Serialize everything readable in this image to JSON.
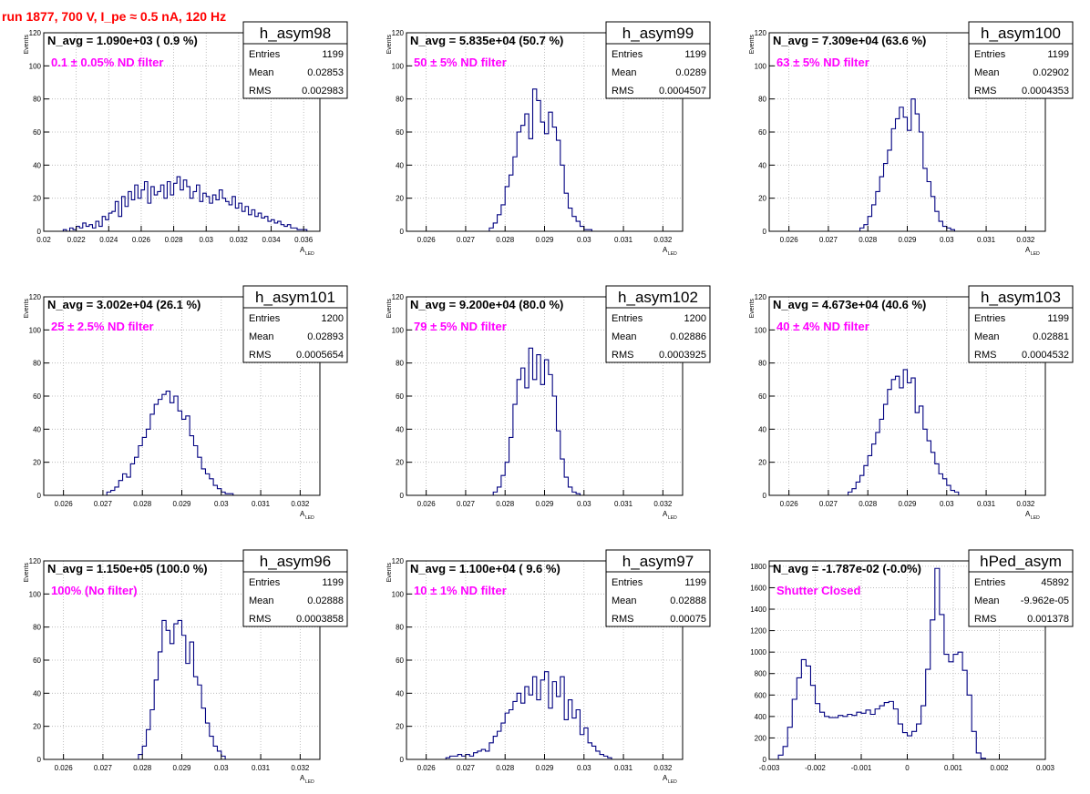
{
  "run_title": "run 1877,   700 V, I_pe ≈ 0.5 nA, 120 Hz",
  "colors": {
    "histogram": "#000080",
    "annotation": "#ff00ff",
    "run_title": "#ff0000",
    "frame": "#000000",
    "grid": "#b0b0b0"
  },
  "stats_labels": {
    "entries": "Entries",
    "mean": "Mean",
    "rms": "RMS"
  },
  "chart_data": [
    {
      "type": "bar",
      "title": "h_asym98",
      "ylabel": "Events",
      "xlabel": "A",
      "xlabel_sub": "LED",
      "navg": "N_avg = 1.090e+03 ( 0.9 %)",
      "filter": "0.1 ± 0.05% ND filter",
      "stats": {
        "entries": "1199",
        "mean": "0.02853",
        "rms": "0.002983"
      },
      "xlim": [
        0.02,
        0.037
      ],
      "ylim": [
        0,
        120
      ],
      "xticks": [
        0.02,
        0.022,
        0.024,
        0.026,
        0.028,
        0.03,
        0.032,
        0.034,
        0.036
      ],
      "xtick_labels": [
        "0.02",
        "0.022",
        "0.024",
        "0.026",
        "0.028",
        "0.03",
        "0.032",
        "0.034",
        "0.036"
      ],
      "yticks": [
        0,
        20,
        40,
        60,
        80,
        100,
        120
      ],
      "ytick_labels": [
        "0",
        "20",
        "40",
        "60",
        "80",
        "100",
        "120"
      ],
      "bin_start": 0.02,
      "bin_width": 0.0002,
      "values": [
        0,
        0,
        0,
        0,
        0,
        0,
        1,
        0,
        2,
        1,
        3,
        2,
        5,
        3,
        4,
        2,
        6,
        3,
        9,
        7,
        11,
        12,
        18,
        9,
        21,
        15,
        24,
        19,
        28,
        20,
        25,
        30,
        17,
        27,
        22,
        24,
        28,
        20,
        30,
        22,
        29,
        33,
        25,
        31,
        27,
        20,
        24,
        28,
        18,
        23,
        21,
        17,
        22,
        19,
        25,
        20,
        18,
        16,
        21,
        14,
        17,
        12,
        15,
        10,
        13,
        9,
        11,
        8,
        9,
        6,
        7,
        5,
        6,
        4,
        3,
        4,
        2,
        2,
        1,
        1,
        1,
        0,
        0,
        0,
        0
      ]
    },
    {
      "type": "bar",
      "title": "h_asym99",
      "ylabel": "Events",
      "xlabel": "A",
      "xlabel_sub": "LED",
      "navg": "N_avg = 5.835e+04 (50.7 %)",
      "filter": "50 ± 5% ND filter",
      "stats": {
        "entries": "1199",
        "mean": "0.0289",
        "rms": "0.0004507"
      },
      "xlim": [
        0.0255,
        0.0325
      ],
      "ylim": [
        0,
        120
      ],
      "xticks": [
        0.026,
        0.027,
        0.028,
        0.029,
        0.03,
        0.031,
        0.032
      ],
      "xtick_labels": [
        "0.026",
        "0.027",
        "0.028",
        "0.029",
        "0.03",
        "0.031",
        "0.032"
      ],
      "yticks": [
        0,
        20,
        40,
        60,
        80,
        100,
        120
      ],
      "ytick_labels": [
        "0",
        "20",
        "40",
        "60",
        "80",
        "100",
        "120"
      ],
      "bin_start": 0.0276,
      "bin_width": 0.0001,
      "values": [
        2,
        5,
        10,
        16,
        27,
        34,
        45,
        60,
        64,
        71,
        56,
        86,
        79,
        66,
        59,
        72,
        63,
        55,
        40,
        23,
        14,
        9,
        6,
        3,
        1,
        1
      ]
    },
    {
      "type": "bar",
      "title": "h_asym100",
      "ylabel": "Events",
      "xlabel": "A",
      "xlabel_sub": "LED",
      "navg": "N_avg = 7.309e+04 (63.6 %)",
      "filter": "63 ± 5% ND filter",
      "stats": {
        "entries": "1199",
        "mean": "0.02902",
        "rms": "0.0004353"
      },
      "xlim": [
        0.0255,
        0.0325
      ],
      "ylim": [
        0,
        120
      ],
      "xticks": [
        0.026,
        0.027,
        0.028,
        0.029,
        0.03,
        0.031,
        0.032
      ],
      "xtick_labels": [
        "0.026",
        "0.027",
        "0.028",
        "0.029",
        "0.03",
        "0.031",
        "0.032"
      ],
      "yticks": [
        0,
        20,
        40,
        60,
        80,
        100,
        120
      ],
      "ytick_labels": [
        "0",
        "20",
        "40",
        "60",
        "80",
        "100",
        "120"
      ],
      "bin_start": 0.0278,
      "bin_width": 0.0001,
      "values": [
        2,
        4,
        9,
        16,
        24,
        33,
        41,
        49,
        62,
        68,
        75,
        69,
        61,
        80,
        71,
        60,
        38,
        30,
        21,
        12,
        6,
        3,
        2,
        1
      ]
    },
    {
      "type": "bar",
      "title": "h_asym101",
      "ylabel": "Events",
      "xlabel": "A",
      "xlabel_sub": "LED",
      "navg": "N_avg = 3.002e+04 (26.1 %)",
      "filter": "25 ± 2.5% ND filter",
      "stats": {
        "entries": "1200",
        "mean": "0.02893",
        "rms": "0.0005654"
      },
      "xlim": [
        0.0255,
        0.0325
      ],
      "ylim": [
        0,
        120
      ],
      "xticks": [
        0.026,
        0.027,
        0.028,
        0.029,
        0.03,
        0.031,
        0.032
      ],
      "xtick_labels": [
        "0.026",
        "0.027",
        "0.028",
        "0.029",
        "0.03",
        "0.031",
        "0.032"
      ],
      "yticks": [
        0,
        20,
        40,
        60,
        80,
        100,
        120
      ],
      "ytick_labels": [
        "0",
        "20",
        "40",
        "60",
        "80",
        "100",
        "120"
      ],
      "bin_start": 0.0271,
      "bin_width": 0.0001,
      "values": [
        2,
        3,
        5,
        9,
        13,
        11,
        19,
        23,
        30,
        35,
        40,
        49,
        55,
        58,
        61,
        63,
        56,
        60,
        51,
        46,
        48,
        36,
        30,
        23,
        16,
        13,
        10,
        6,
        4,
        2,
        1,
        1
      ]
    },
    {
      "type": "bar",
      "title": "h_asym102",
      "ylabel": "Events",
      "xlabel": "A",
      "xlabel_sub": "LED",
      "navg": "N_avg = 9.200e+04 (80.0 %)",
      "filter": "79 ± 5% ND filter",
      "stats": {
        "entries": "1200",
        "mean": "0.02886",
        "rms": "0.0003925"
      },
      "xlim": [
        0.0255,
        0.0325
      ],
      "ylim": [
        0,
        120
      ],
      "xticks": [
        0.026,
        0.027,
        0.028,
        0.029,
        0.03,
        0.031,
        0.032
      ],
      "xtick_labels": [
        "0.026",
        "0.027",
        "0.028",
        "0.029",
        "0.03",
        "0.031",
        "0.032"
      ],
      "yticks": [
        0,
        20,
        40,
        60,
        80,
        100,
        120
      ],
      "ytick_labels": [
        "0",
        "20",
        "40",
        "60",
        "80",
        "100",
        "120"
      ],
      "bin_start": 0.0277,
      "bin_width": 0.0001,
      "values": [
        2,
        5,
        12,
        20,
        35,
        55,
        70,
        77,
        65,
        89,
        70,
        85,
        67,
        82,
        73,
        60,
        39,
        22,
        11,
        5,
        2,
        1
      ]
    },
    {
      "type": "bar",
      "title": "h_asym103",
      "ylabel": "Events",
      "xlabel": "A",
      "xlabel_sub": "LED",
      "navg": "N_avg = 4.673e+04 (40.6 %)",
      "filter": "40 ± 4% ND filter",
      "stats": {
        "entries": "1199",
        "mean": "0.02881",
        "rms": "0.0004532"
      },
      "xlim": [
        0.0255,
        0.0325
      ],
      "ylim": [
        0,
        120
      ],
      "xticks": [
        0.026,
        0.027,
        0.028,
        0.029,
        0.03,
        0.031,
        0.032
      ],
      "xtick_labels": [
        "0.026",
        "0.027",
        "0.028",
        "0.029",
        "0.03",
        "0.031",
        "0.032"
      ],
      "yticks": [
        0,
        20,
        40,
        60,
        80,
        100,
        120
      ],
      "ytick_labels": [
        "0",
        "20",
        "40",
        "60",
        "80",
        "100",
        "120"
      ],
      "bin_start": 0.0275,
      "bin_width": 0.0001,
      "values": [
        2,
        4,
        8,
        12,
        18,
        24,
        31,
        38,
        46,
        55,
        64,
        70,
        72,
        65,
        76,
        68,
        71,
        50,
        54,
        40,
        33,
        26,
        19,
        13,
        10,
        6,
        3,
        2
      ]
    },
    {
      "type": "bar",
      "title": "h_asym96",
      "ylabel": "Events",
      "xlabel": "A",
      "xlabel_sub": "LED",
      "navg": "N_avg = 1.150e+05 (100.0 %)",
      "filter": "100% (No filter)",
      "stats": {
        "entries": "1199",
        "mean": "0.02888",
        "rms": "0.0003858"
      },
      "xlim": [
        0.0255,
        0.0325
      ],
      "ylim": [
        0,
        120
      ],
      "xticks": [
        0.026,
        0.027,
        0.028,
        0.029,
        0.03,
        0.031,
        0.032
      ],
      "xtick_labels": [
        "0.026",
        "0.027",
        "0.028",
        "0.029",
        "0.03",
        "0.031",
        "0.032"
      ],
      "yticks": [
        0,
        20,
        40,
        60,
        80,
        100,
        120
      ],
      "ytick_labels": [
        "0",
        "20",
        "40",
        "60",
        "80",
        "100",
        "120"
      ],
      "bin_start": 0.0279,
      "bin_width": 0.0001,
      "values": [
        3,
        8,
        18,
        30,
        48,
        65,
        84,
        78,
        70,
        82,
        84,
        75,
        58,
        71,
        50,
        45,
        31,
        22,
        14,
        8,
        5,
        2
      ]
    },
    {
      "type": "bar",
      "title": "h_asym97",
      "ylabel": "Events",
      "xlabel": "A",
      "xlabel_sub": "LED",
      "navg": "N_avg = 1.100e+04 ( 9.6 %)",
      "filter": "10 ± 1% ND filter",
      "stats": {
        "entries": "1199",
        "mean": "0.02888",
        "rms": "0.00075"
      },
      "xlim": [
        0.0255,
        0.0325
      ],
      "ylim": [
        0,
        120
      ],
      "xticks": [
        0.026,
        0.027,
        0.028,
        0.029,
        0.03,
        0.031,
        0.032
      ],
      "xtick_labels": [
        "0.026",
        "0.027",
        "0.028",
        "0.029",
        "0.03",
        "0.031",
        "0.032"
      ],
      "yticks": [
        0,
        20,
        40,
        60,
        80,
        100,
        120
      ],
      "ytick_labels": [
        "0",
        "20",
        "40",
        "60",
        "80",
        "100",
        "120"
      ],
      "bin_start": 0.0265,
      "bin_width": 0.0001,
      "values": [
        1,
        2,
        2,
        3,
        2,
        3,
        2,
        4,
        5,
        6,
        5,
        10,
        14,
        17,
        22,
        28,
        30,
        35,
        40,
        34,
        44,
        39,
        50,
        36,
        48,
        53,
        31,
        47,
        38,
        50,
        24,
        36,
        25,
        30,
        15,
        19,
        10,
        8,
        5,
        3,
        2,
        1
      ]
    },
    {
      "type": "bar",
      "title": "hPed_asym",
      "ylabel": "",
      "xlabel": "",
      "xlabel_sub": "",
      "navg": "N_avg = -1.787e-02 (-0.0%)",
      "filter": "Shutter Closed",
      "stats": {
        "entries": "45892",
        "mean": "-9.962e-05",
        "rms": "0.001378"
      },
      "xlim": [
        -0.003,
        0.003
      ],
      "ylim": [
        0,
        1850
      ],
      "xticks": [
        -0.003,
        -0.002,
        -0.001,
        0,
        0.001,
        0.002,
        0.003
      ],
      "xtick_labels": [
        "-0.003",
        "-0.002",
        "-0.001",
        "0",
        "0.001",
        "0.002",
        "0.003"
      ],
      "yticks": [
        0,
        200,
        400,
        600,
        800,
        1000,
        1200,
        1400,
        1600,
        1800
      ],
      "ytick_labels": [
        "0",
        "200",
        "400",
        "600",
        "800",
        "1000",
        "1200",
        "1400",
        "1600",
        "1800"
      ],
      "bin_start": -0.0028,
      "bin_width": 0.0001,
      "values": [
        40,
        120,
        300,
        560,
        760,
        930,
        870,
        690,
        520,
        440,
        400,
        390,
        390,
        410,
        400,
        420,
        410,
        440,
        430,
        460,
        420,
        470,
        500,
        530,
        540,
        470,
        330,
        250,
        220,
        260,
        330,
        500,
        840,
        1300,
        1780,
        1350,
        980,
        910,
        980,
        1000,
        830,
        600,
        260,
        60,
        10
      ]
    }
  ]
}
